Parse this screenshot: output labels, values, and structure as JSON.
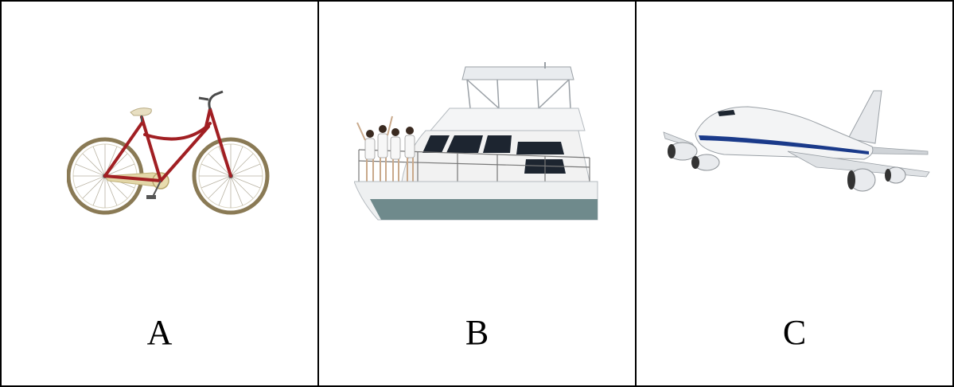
{
  "options": [
    {
      "label": "A",
      "image": "bicycle"
    },
    {
      "label": "B",
      "image": "yacht-with-people"
    },
    {
      "label": "C",
      "image": "airliner"
    }
  ],
  "colors": {
    "bicycle_frame": "#a11f23",
    "tire": "#8a7a55",
    "hull": "#f2f2f2",
    "hull_bottom": "#6f8a8c",
    "window": "#1d2530",
    "stripe": "#1a3a8a"
  }
}
